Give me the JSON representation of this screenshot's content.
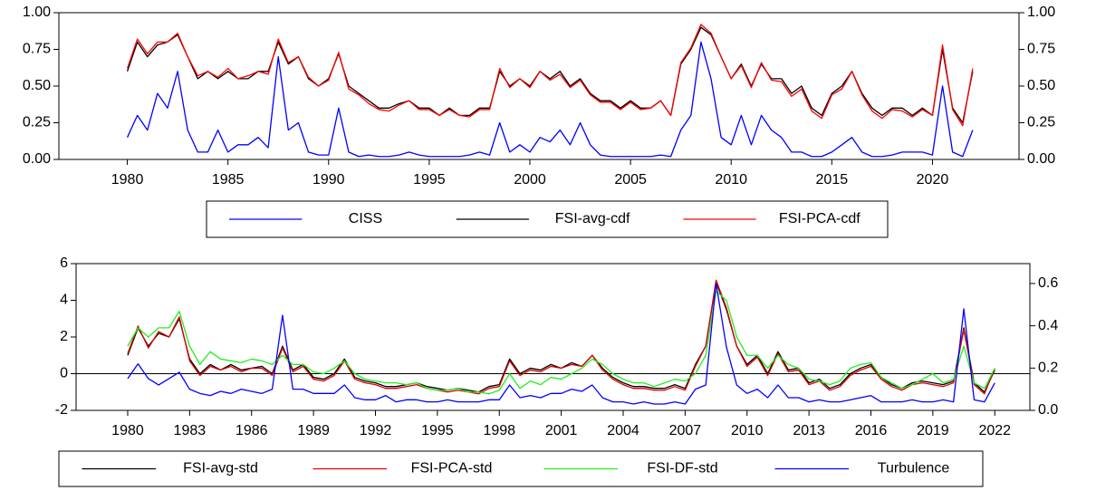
{
  "chart_data": [
    {
      "type": "line",
      "x": [
        1980,
        1980.5,
        1981,
        1981.5,
        1982,
        1982.5,
        1983,
        1983.5,
        1984,
        1984.5,
        1985,
        1985.5,
        1986,
        1986.5,
        1987,
        1987.5,
        1988,
        1988.5,
        1989,
        1989.5,
        1990,
        1990.5,
        1991,
        1991.5,
        1992,
        1992.5,
        1993,
        1993.5,
        1994,
        1994.5,
        1995,
        1995.5,
        1996,
        1996.5,
        1997,
        1997.5,
        1998,
        1998.5,
        1999,
        1999.5,
        2000,
        2000.5,
        2001,
        2001.5,
        2002,
        2002.5,
        2003,
        2003.5,
        2004,
        2004.5,
        2005,
        2005.5,
        2006,
        2006.5,
        2007,
        2007.5,
        2008,
        2008.5,
        2009,
        2009.5,
        2010,
        2010.5,
        2011,
        2011.5,
        2012,
        2012.5,
        2013,
        2013.5,
        2014,
        2014.5,
        2015,
        2015.5,
        2016,
        2016.5,
        2017,
        2017.5,
        2018,
        2018.5,
        2019,
        2019.5,
        2020,
        2020.5,
        2021,
        2021.5,
        2022
      ],
      "xlim": [
        1976.6,
        2024.3
      ],
      "xticks": [
        1980,
        1985,
        1990,
        1995,
        2000,
        2005,
        2010,
        2015,
        2020
      ],
      "ylim": [
        0,
        1
      ],
      "yticks": [
        {
          "value": 0,
          "label": "0.00"
        },
        {
          "value": 0.25,
          "label": "0.25"
        },
        {
          "value": 0.5,
          "label": "0.50"
        },
        {
          "value": 0.75,
          "label": "0.75"
        },
        {
          "value": 1,
          "label": "1.00"
        }
      ],
      "y2lim": [
        0,
        1
      ],
      "y2ticks": [
        {
          "value": 0,
          "label": "0.00"
        },
        {
          "value": 0.25,
          "label": "0.25"
        },
        {
          "value": 0.5,
          "label": "0.50"
        },
        {
          "value": 0.75,
          "label": "0.75"
        },
        {
          "value": 1,
          "label": "1.00"
        }
      ],
      "series": [
        {
          "name": "CISS",
          "color": "#0000ff",
          "values": [
            0.15,
            0.3,
            0.2,
            0.45,
            0.35,
            0.6,
            0.2,
            0.05,
            0.05,
            0.2,
            0.05,
            0.1,
            0.1,
            0.15,
            0.08,
            0.7,
            0.2,
            0.25,
            0.05,
            0.03,
            0.03,
            0.35,
            0.05,
            0.02,
            0.03,
            0.02,
            0.02,
            0.03,
            0.05,
            0.03,
            0.02,
            0.02,
            0.02,
            0.02,
            0.03,
            0.05,
            0.03,
            0.25,
            0.05,
            0.1,
            0.05,
            0.15,
            0.12,
            0.2,
            0.1,
            0.25,
            0.1,
            0.03,
            0.02,
            0.02,
            0.02,
            0.02,
            0.02,
            0.03,
            0.02,
            0.2,
            0.3,
            0.8,
            0.55,
            0.15,
            0.1,
            0.3,
            0.1,
            0.3,
            0.2,
            0.15,
            0.05,
            0.05,
            0.02,
            0.02,
            0.05,
            0.1,
            0.15,
            0.05,
            0.02,
            0.02,
            0.03,
            0.05,
            0.05,
            0.05,
            0.03,
            0.5,
            0.05,
            0.02,
            0.2
          ]
        },
        {
          "name": "FSI-avg-cdf",
          "color": "#000000",
          "values": [
            0.6,
            0.8,
            0.7,
            0.78,
            0.8,
            0.85,
            0.7,
            0.55,
            0.6,
            0.55,
            0.6,
            0.55,
            0.55,
            0.6,
            0.6,
            0.8,
            0.65,
            0.7,
            0.55,
            0.5,
            0.55,
            0.72,
            0.5,
            0.45,
            0.4,
            0.35,
            0.35,
            0.38,
            0.4,
            0.35,
            0.35,
            0.3,
            0.35,
            0.3,
            0.3,
            0.35,
            0.35,
            0.6,
            0.5,
            0.55,
            0.5,
            0.6,
            0.55,
            0.6,
            0.5,
            0.55,
            0.45,
            0.4,
            0.4,
            0.35,
            0.4,
            0.35,
            0.35,
            0.4,
            0.3,
            0.65,
            0.75,
            0.9,
            0.85,
            0.7,
            0.55,
            0.65,
            0.5,
            0.65,
            0.55,
            0.55,
            0.45,
            0.5,
            0.35,
            0.3,
            0.45,
            0.5,
            0.6,
            0.45,
            0.35,
            0.3,
            0.35,
            0.35,
            0.3,
            0.35,
            0.3,
            0.75,
            0.35,
            0.25,
            0.6
          ]
        },
        {
          "name": "FSI-PCA-cdf",
          "color": "#ff0000",
          "values": [
            0.62,
            0.82,
            0.72,
            0.8,
            0.8,
            0.86,
            0.7,
            0.57,
            0.6,
            0.56,
            0.62,
            0.55,
            0.57,
            0.6,
            0.58,
            0.82,
            0.66,
            0.7,
            0.56,
            0.5,
            0.54,
            0.73,
            0.48,
            0.44,
            0.38,
            0.34,
            0.33,
            0.37,
            0.4,
            0.34,
            0.34,
            0.3,
            0.34,
            0.3,
            0.29,
            0.34,
            0.34,
            0.62,
            0.49,
            0.55,
            0.49,
            0.6,
            0.54,
            0.58,
            0.49,
            0.54,
            0.44,
            0.39,
            0.39,
            0.34,
            0.39,
            0.34,
            0.35,
            0.4,
            0.3,
            0.66,
            0.76,
            0.92,
            0.86,
            0.7,
            0.55,
            0.64,
            0.49,
            0.66,
            0.54,
            0.53,
            0.43,
            0.48,
            0.33,
            0.28,
            0.44,
            0.48,
            0.6,
            0.44,
            0.33,
            0.28,
            0.34,
            0.33,
            0.29,
            0.34,
            0.3,
            0.78,
            0.34,
            0.23,
            0.62
          ]
        }
      ]
    },
    {
      "type": "line",
      "x": [
        1980,
        1980.5,
        1981,
        1981.5,
        1982,
        1982.5,
        1983,
        1983.5,
        1984,
        1984.5,
        1985,
        1985.5,
        1986,
        1986.5,
        1987,
        1987.5,
        1988,
        1988.5,
        1989,
        1989.5,
        1990,
        1990.5,
        1991,
        1991.5,
        1992,
        1992.5,
        1993,
        1993.5,
        1994,
        1994.5,
        1995,
        1995.5,
        1996,
        1996.5,
        1997,
        1997.5,
        1998,
        1998.5,
        1999,
        1999.5,
        2000,
        2000.5,
        2001,
        2001.5,
        2002,
        2002.5,
        2003,
        2003.5,
        2004,
        2004.5,
        2005,
        2005.5,
        2006,
        2006.5,
        2007,
        2007.5,
        2008,
        2008.5,
        2009,
        2009.5,
        2010,
        2010.5,
        2011,
        2011.5,
        2012,
        2012.5,
        2013,
        2013.5,
        2014,
        2014.5,
        2015,
        2015.5,
        2016,
        2016.5,
        2017,
        2017.5,
        2018,
        2018.5,
        2019,
        2019.5,
        2020,
        2020.5,
        2021,
        2021.5,
        2022
      ],
      "xlim": [
        1977.5,
        2023.7
      ],
      "xticks": [
        1980,
        1983,
        1986,
        1989,
        1992,
        1995,
        1998,
        2001,
        2004,
        2007,
        2010,
        2013,
        2016,
        2019,
        2022
      ],
      "ylim": [
        -2,
        6
      ],
      "yticks": [
        -2,
        0,
        2,
        4,
        6
      ],
      "y2lim": [
        0,
        0.694
      ],
      "y2ticks": [
        {
          "value": 0,
          "label": "0.0"
        },
        0.2,
        0.4,
        0.6
      ],
      "zero_line": true,
      "series": [
        {
          "name": "FSI-avg-std",
          "color": "#000000",
          "values": [
            1.0,
            2.5,
            1.5,
            2.2,
            2.0,
            3.0,
            0.8,
            0.0,
            0.5,
            0.2,
            0.5,
            0.2,
            0.3,
            0.4,
            0.0,
            1.5,
            0.2,
            0.5,
            -0.2,
            -0.3,
            0.0,
            0.8,
            -0.2,
            -0.4,
            -0.5,
            -0.7,
            -0.7,
            -0.6,
            -0.5,
            -0.7,
            -0.8,
            -0.9,
            -0.8,
            -0.9,
            -1.0,
            -0.7,
            -0.6,
            0.8,
            0.0,
            0.3,
            0.2,
            0.5,
            0.3,
            0.6,
            0.4,
            1.0,
            0.3,
            -0.2,
            -0.5,
            -0.7,
            -0.7,
            -0.8,
            -0.8,
            -0.6,
            -0.8,
            0.5,
            1.5,
            5.0,
            3.5,
            1.5,
            0.5,
            1.0,
            0.0,
            1.2,
            0.2,
            0.3,
            -0.5,
            -0.3,
            -0.8,
            -0.6,
            0.0,
            0.3,
            0.5,
            -0.2,
            -0.6,
            -0.8,
            -0.5,
            -0.4,
            -0.5,
            -0.6,
            -0.4,
            2.5,
            -0.5,
            -1.0,
            0.2
          ]
        },
        {
          "name": "FSI-PCA-std",
          "color": "#e00000",
          "values": [
            1.1,
            2.6,
            1.4,
            2.3,
            2.0,
            3.1,
            0.7,
            -0.1,
            0.4,
            0.2,
            0.4,
            0.1,
            0.3,
            0.3,
            -0.1,
            1.4,
            0.1,
            0.4,
            -0.3,
            -0.4,
            -0.1,
            0.7,
            -0.3,
            -0.5,
            -0.6,
            -0.8,
            -0.8,
            -0.7,
            -0.6,
            -0.8,
            -0.9,
            -1.0,
            -0.9,
            -1.0,
            -1.1,
            -0.8,
            -0.7,
            0.7,
            -0.1,
            0.2,
            0.1,
            0.4,
            0.3,
            0.5,
            0.4,
            1.0,
            0.2,
            -0.3,
            -0.6,
            -0.8,
            -0.8,
            -0.9,
            -0.9,
            -0.7,
            -0.9,
            0.4,
            1.5,
            5.1,
            3.6,
            1.5,
            0.4,
            0.9,
            -0.1,
            1.1,
            0.1,
            0.2,
            -0.6,
            -0.4,
            -0.9,
            -0.7,
            -0.1,
            0.2,
            0.4,
            -0.3,
            -0.7,
            -0.9,
            -0.6,
            -0.5,
            -0.6,
            -0.7,
            -0.5,
            2.4,
            -0.6,
            -1.1,
            0.3
          ]
        },
        {
          "name": "FSI-DF-std",
          "color": "#22ee22",
          "values": [
            1.5,
            2.5,
            2.0,
            2.5,
            2.5,
            3.4,
            1.5,
            0.5,
            1.2,
            0.8,
            0.7,
            0.6,
            0.8,
            0.7,
            0.5,
            1.0,
            0.5,
            0.5,
            0.1,
            0.0,
            0.3,
            0.7,
            0.0,
            -0.3,
            -0.4,
            -0.5,
            -0.5,
            -0.6,
            -0.5,
            -0.8,
            -0.9,
            -0.9,
            -0.8,
            -1.0,
            -1.0,
            -1.1,
            -0.9,
            0.0,
            -0.8,
            -0.4,
            -0.6,
            -0.2,
            -0.3,
            0.0,
            0.3,
            0.8,
            0.5,
            0.0,
            -0.3,
            -0.5,
            -0.5,
            -0.7,
            -0.5,
            -0.3,
            -0.4,
            0.0,
            1.0,
            4.5,
            4.0,
            2.0,
            1.0,
            1.0,
            0.3,
            1.0,
            0.5,
            0.3,
            -0.3,
            -0.4,
            -0.6,
            -0.4,
            0.3,
            0.5,
            0.6,
            -0.2,
            -0.5,
            -0.8,
            -0.6,
            -0.3,
            0.0,
            -0.5,
            -0.3,
            1.5,
            -0.5,
            -0.8,
            0.3
          ]
        },
        {
          "name": "Turbulence",
          "color": "#0000ff",
          "axis": "y2",
          "values": [
            0.15,
            0.22,
            0.15,
            0.12,
            0.15,
            0.18,
            0.1,
            0.08,
            0.07,
            0.09,
            0.08,
            0.1,
            0.09,
            0.08,
            0.1,
            0.45,
            0.1,
            0.1,
            0.08,
            0.08,
            0.08,
            0.12,
            0.06,
            0.05,
            0.05,
            0.07,
            0.04,
            0.05,
            0.05,
            0.04,
            0.04,
            0.05,
            0.04,
            0.04,
            0.04,
            0.05,
            0.05,
            0.12,
            0.06,
            0.07,
            0.06,
            0.08,
            0.08,
            0.1,
            0.09,
            0.12,
            0.06,
            0.04,
            0.04,
            0.03,
            0.04,
            0.03,
            0.03,
            0.04,
            0.03,
            0.1,
            0.12,
            0.6,
            0.3,
            0.12,
            0.08,
            0.1,
            0.06,
            0.12,
            0.06,
            0.06,
            0.04,
            0.05,
            0.04,
            0.04,
            0.05,
            0.06,
            0.07,
            0.04,
            0.04,
            0.04,
            0.05,
            0.04,
            0.04,
            0.05,
            0.04,
            0.48,
            0.05,
            0.04,
            0.13
          ]
        }
      ]
    }
  ]
}
